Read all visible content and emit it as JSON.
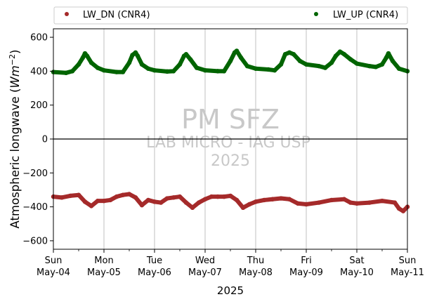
{
  "chart_data": {
    "type": "scatter",
    "xlabel": "2025",
    "ylabel": "Atmospheric longwave (Wm^-2)",
    "xlim": [
      "2025-05-04",
      "2025-05-11"
    ],
    "ylim": [
      -650,
      650
    ],
    "yticks": [
      -600,
      -400,
      -200,
      0,
      200,
      400,
      600
    ],
    "xticks": [
      {
        "date": "2025-05-04",
        "day": "Sun",
        "label": "May-04"
      },
      {
        "date": "2025-05-05",
        "day": "Mon",
        "label": "May-05"
      },
      {
        "date": "2025-05-06",
        "day": "Tue",
        "label": "May-06"
      },
      {
        "date": "2025-05-07",
        "day": "Wed",
        "label": "May-07"
      },
      {
        "date": "2025-05-08",
        "day": "Thu",
        "label": "May-08"
      },
      {
        "date": "2025-05-09",
        "day": "Fri",
        "label": "May-09"
      },
      {
        "date": "2025-05-10",
        "day": "Sat",
        "label": "May-10"
      },
      {
        "date": "2025-05-11",
        "day": "Sun",
        "label": "May-11"
      }
    ],
    "grid": "vertical",
    "zero_line": true,
    "legend": {
      "placement": "top",
      "columns": 2
    },
    "series": [
      {
        "name": "LW_DN (CNR4)",
        "color": "#a52a2a",
        "points": [
          [
            "2025-05-04 00:00",
            -340
          ],
          [
            "2025-05-04 04:00",
            -345
          ],
          [
            "2025-05-04 08:00",
            -335
          ],
          [
            "2025-05-04 12:00",
            -330
          ],
          [
            "2025-05-04 15:00",
            -370
          ],
          [
            "2025-05-04 18:00",
            -395
          ],
          [
            "2025-05-04 21:00",
            -365
          ],
          [
            "2025-05-05 00:00",
            -365
          ],
          [
            "2025-05-05 03:00",
            -360
          ],
          [
            "2025-05-05 06:00",
            -340
          ],
          [
            "2025-05-05 09:00",
            -330
          ],
          [
            "2025-05-05 12:00",
            -325
          ],
          [
            "2025-05-05 15:00",
            -345
          ],
          [
            "2025-05-05 18:00",
            -390
          ],
          [
            "2025-05-05 21:00",
            -360
          ],
          [
            "2025-05-06 00:00",
            -370
          ],
          [
            "2025-05-06 03:00",
            -375
          ],
          [
            "2025-05-06 06:00",
            -350
          ],
          [
            "2025-05-06 09:00",
            -345
          ],
          [
            "2025-05-06 12:00",
            -340
          ],
          [
            "2025-05-06 15:00",
            -375
          ],
          [
            "2025-05-06 18:00",
            -405
          ],
          [
            "2025-05-06 21:00",
            -375
          ],
          [
            "2025-05-07 00:00",
            -355
          ],
          [
            "2025-05-07 03:00",
            -340
          ],
          [
            "2025-05-07 06:00",
            -340
          ],
          [
            "2025-05-07 09:00",
            -340
          ],
          [
            "2025-05-07 12:00",
            -335
          ],
          [
            "2025-05-07 15:00",
            -360
          ],
          [
            "2025-05-07 18:00",
            -405
          ],
          [
            "2025-05-07 21:00",
            -385
          ],
          [
            "2025-05-08 00:00",
            -370
          ],
          [
            "2025-05-08 04:00",
            -360
          ],
          [
            "2025-05-08 08:00",
            -355
          ],
          [
            "2025-05-08 12:00",
            -350
          ],
          [
            "2025-05-08 16:00",
            -355
          ],
          [
            "2025-05-08 20:00",
            -380
          ],
          [
            "2025-05-09 00:00",
            -385
          ],
          [
            "2025-05-09 06:00",
            -375
          ],
          [
            "2025-05-09 12:00",
            -360
          ],
          [
            "2025-05-09 18:00",
            -355
          ],
          [
            "2025-05-09 21:00",
            -375
          ],
          [
            "2025-05-10 00:00",
            -380
          ],
          [
            "2025-05-10 06:00",
            -375
          ],
          [
            "2025-05-10 12:00",
            -365
          ],
          [
            "2025-05-10 18:00",
            -375
          ],
          [
            "2025-05-10 20:00",
            -410
          ],
          [
            "2025-05-10 22:00",
            -425
          ],
          [
            "2025-05-11 00:00",
            -400
          ]
        ]
      },
      {
        "name": "LW_UP (CNR4)",
        "color": "#006400",
        "points": [
          [
            "2025-05-04 00:00",
            395
          ],
          [
            "2025-05-04 06:00",
            390
          ],
          [
            "2025-05-04 09:00",
            400
          ],
          [
            "2025-05-04 12:00",
            440
          ],
          [
            "2025-05-04 14:00",
            480
          ],
          [
            "2025-05-04 15:00",
            505
          ],
          [
            "2025-05-04 16:00",
            490
          ],
          [
            "2025-05-04 18:00",
            450
          ],
          [
            "2025-05-04 21:00",
            420
          ],
          [
            "2025-05-05 00:00",
            405
          ],
          [
            "2025-05-05 06:00",
            395
          ],
          [
            "2025-05-05 09:00",
            395
          ],
          [
            "2025-05-05 12:00",
            450
          ],
          [
            "2025-05-05 13:30",
            495
          ],
          [
            "2025-05-05 15:00",
            510
          ],
          [
            "2025-05-05 16:00",
            490
          ],
          [
            "2025-05-05 18:00",
            440
          ],
          [
            "2025-05-05 21:00",
            415
          ],
          [
            "2025-05-06 00:00",
            405
          ],
          [
            "2025-05-06 06:00",
            398
          ],
          [
            "2025-05-06 09:00",
            400
          ],
          [
            "2025-05-06 12:00",
            440
          ],
          [
            "2025-05-06 14:00",
            490
          ],
          [
            "2025-05-06 15:00",
            500
          ],
          [
            "2025-05-06 17:00",
            470
          ],
          [
            "2025-05-06 20:00",
            420
          ],
          [
            "2025-05-07 00:00",
            405
          ],
          [
            "2025-05-07 06:00",
            400
          ],
          [
            "2025-05-07 09:00",
            400
          ],
          [
            "2025-05-07 12:00",
            460
          ],
          [
            "2025-05-07 14:00",
            510
          ],
          [
            "2025-05-07 15:00",
            520
          ],
          [
            "2025-05-07 17:00",
            480
          ],
          [
            "2025-05-07 20:00",
            430
          ],
          [
            "2025-05-08 00:00",
            415
          ],
          [
            "2025-05-08 06:00",
            410
          ],
          [
            "2025-05-08 09:00",
            405
          ],
          [
            "2025-05-08 12:00",
            440
          ],
          [
            "2025-05-08 14:00",
            500
          ],
          [
            "2025-05-08 16:00",
            510
          ],
          [
            "2025-05-08 18:00",
            500
          ],
          [
            "2025-05-08 21:00",
            460
          ],
          [
            "2025-05-09 00:00",
            440
          ],
          [
            "2025-05-09 06:00",
            430
          ],
          [
            "2025-05-09 09:00",
            420
          ],
          [
            "2025-05-09 12:00",
            450
          ],
          [
            "2025-05-09 14:00",
            490
          ],
          [
            "2025-05-09 16:00",
            515
          ],
          [
            "2025-05-09 18:00",
            500
          ],
          [
            "2025-05-09 21:00",
            470
          ],
          [
            "2025-05-10 00:00",
            445
          ],
          [
            "2025-05-10 06:00",
            430
          ],
          [
            "2025-05-10 09:00",
            425
          ],
          [
            "2025-05-10 12:00",
            440
          ],
          [
            "2025-05-10 14:00",
            480
          ],
          [
            "2025-05-10 15:00",
            505
          ],
          [
            "2025-05-10 17:00",
            460
          ],
          [
            "2025-05-10 20:00",
            415
          ],
          [
            "2025-05-11 00:00",
            400
          ]
        ]
      }
    ],
    "watermark": [
      "PM SFZ",
      "LAB MICRO - IAG USP",
      "2025"
    ]
  }
}
